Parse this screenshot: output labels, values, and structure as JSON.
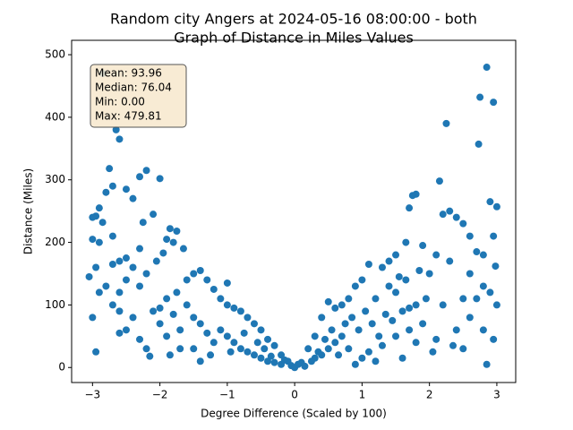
{
  "chart_data": {
    "type": "scatter",
    "title": [
      "Random city Angers at 2024-05-16 08:00:00  - both",
      "Graph of Distance in Miles Values"
    ],
    "x_label": "Degree Difference (Scaled by 100)",
    "y_label": "Distance (Miles)",
    "annotation": [
      "Mean: 93.96",
      "Median: 76.04",
      "Min: 0.00",
      "Max: 479.81"
    ],
    "color": "#1f77b4",
    "xlim": [
      -3.31,
      3.28
    ],
    "ylim": [
      -24,
      523
    ],
    "xticks": [
      {
        "value": -3,
        "label": "−3"
      },
      {
        "value": -2,
        "label": "−2"
      },
      {
        "value": -1,
        "label": "−1"
      },
      0,
      1,
      2,
      3
    ],
    "yticks": [
      0,
      100,
      200,
      300,
      400,
      500
    ],
    "x": [
      -2.85,
      -2.6,
      -2.65,
      -2.75,
      -2.7,
      -2.8,
      -2.9,
      -2.95,
      -3.0,
      -2.85,
      -2.7,
      -3.0,
      -2.9,
      -2.95,
      -3.05,
      -2.9,
      -3.0,
      -2.95,
      -2.5,
      -2.3,
      -2.2,
      -2.0,
      -2.1,
      -2.25,
      -2.4,
      -2.3,
      -1.85,
      -1.75,
      -1.8,
      -1.9,
      -2.05,
      -1.95,
      -2.5,
      -2.6,
      -2.7,
      -2.4,
      -2.2,
      -2.5,
      -2.3,
      -2.6,
      -2.8,
      -2.7,
      -2.6,
      -2.4,
      -2.5,
      -2.6,
      -2.3,
      -2.2,
      -2.15,
      -2.0,
      -1.9,
      -2.1,
      -2.0,
      -1.8,
      -1.9,
      -1.85,
      -1.7,
      -1.6,
      -1.5,
      -1.4,
      -1.3,
      -1.2,
      -1.65,
      -1.6,
      -1.5,
      -1.4,
      -1.3,
      -1.2,
      -1.1,
      -1.0,
      -1.0,
      -0.9,
      -0.8,
      -0.7,
      -0.6,
      -0.5,
      -0.4,
      -0.3,
      -0.2,
      -0.1,
      -1.5,
      -1.4,
      -1.1,
      -1.0,
      -0.9,
      -0.8,
      -0.7,
      -0.6,
      -0.5,
      -0.4,
      -0.3,
      -0.2,
      -1.7,
      -1.75,
      -1.25,
      -0.95,
      -0.75,
      -0.55,
      -0.45,
      -0.35,
      -0.15,
      -0.05,
      0,
      0.05,
      0.1,
      0.15,
      2.85,
      2.75,
      2.95,
      2.25,
      2.73,
      2.15,
      2.9,
      3.0,
      1.8,
      1.75,
      1.7,
      2.3,
      2.2,
      2.4,
      2.5,
      2.6,
      2.95,
      1.65,
      1.9,
      2.1,
      2.3,
      2.7,
      2.8,
      2.98,
      1.5,
      1.4,
      1.3,
      1.1,
      1.0,
      2.0,
      2.6,
      2.8,
      2.9,
      3.0,
      2.5,
      2.2,
      1.95,
      1.8,
      1.7,
      1.6,
      1.5,
      1.4,
      1.2,
      0.9,
      0.8,
      0.7,
      0.6,
      0.5,
      0.4,
      0.3,
      0.2,
      2.6,
      2.8,
      2.95,
      2.1,
      2.35,
      2.5,
      2.85,
      2.05,
      1.8,
      1.6,
      1.7,
      1.5,
      1.3,
      1.1,
      1.0,
      0.8,
      0.7,
      0.6,
      0.5,
      0.4,
      0.3,
      0.25,
      0.35,
      0.45,
      0.55,
      0.65,
      0.75,
      0.85,
      0.95,
      1.05,
      1.15,
      1.25,
      1.35,
      1.45,
      1.55,
      1.65,
      1.85,
      1.9,
      2.4,
      2.7,
      1.2,
      0.9
    ],
    "values": [
      470,
      365,
      380,
      318,
      290,
      280,
      255,
      242,
      240,
      232,
      210,
      205,
      200,
      160,
      145,
      120,
      80,
      25,
      285,
      305,
      315,
      302,
      245,
      232,
      270,
      190,
      222,
      218,
      200,
      205,
      170,
      183,
      175,
      170,
      165,
      160,
      150,
      140,
      130,
      120,
      130,
      100,
      90,
      80,
      60,
      55,
      45,
      30,
      18,
      95,
      110,
      90,
      70,
      85,
      50,
      20,
      30,
      140,
      150,
      155,
      140,
      125,
      190,
      100,
      80,
      70,
      55,
      40,
      110,
      135,
      100,
      95,
      90,
      80,
      70,
      60,
      45,
      35,
      20,
      10,
      30,
      10,
      60,
      50,
      40,
      30,
      25,
      20,
      15,
      10,
      8,
      5,
      60,
      120,
      20,
      25,
      55,
      40,
      30,
      18,
      12,
      3,
      0,
      5,
      8,
      2,
      480,
      432,
      424,
      390,
      357,
      298,
      265,
      257,
      277,
      275,
      255,
      250,
      245,
      240,
      230,
      210,
      210,
      200,
      195,
      180,
      170,
      185,
      180,
      162,
      180,
      170,
      160,
      165,
      140,
      150,
      150,
      130,
      120,
      100,
      110,
      100,
      110,
      100,
      95,
      90,
      120,
      130,
      110,
      130,
      110,
      100,
      95,
      105,
      80,
      50,
      30,
      80,
      60,
      45,
      45,
      35,
      30,
      5,
      25,
      40,
      15,
      60,
      50,
      35,
      25,
      15,
      30,
      50,
      40,
      30,
      20,
      15,
      10,
      25,
      45,
      60,
      20,
      70,
      80,
      60,
      90,
      70,
      50,
      85,
      75,
      145,
      140,
      155,
      70,
      60,
      110,
      10,
      5
    ]
  }
}
